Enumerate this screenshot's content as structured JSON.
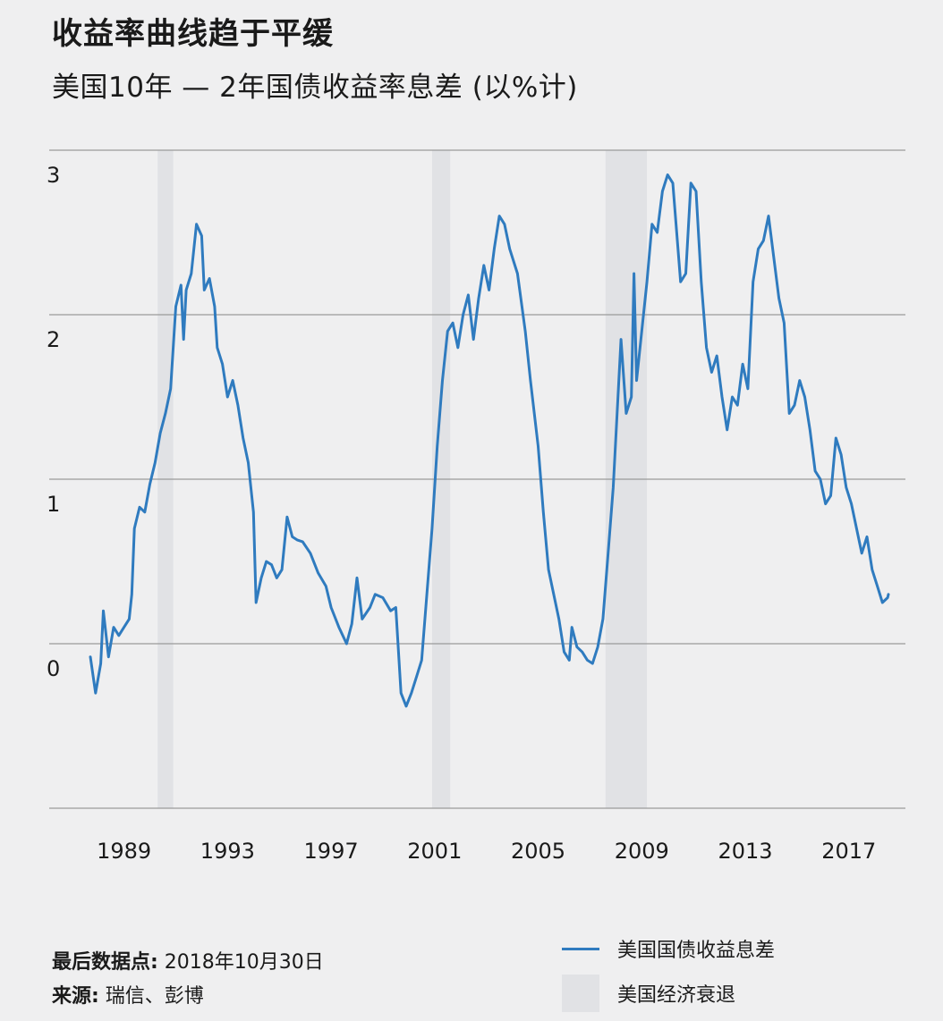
{
  "header": {
    "title": "收益率曲线趋于平缓",
    "subtitle": "美国10年 — 2年国债收益率息差 (以%计)"
  },
  "chart_data": {
    "type": "line",
    "title": "收益率曲线趋于平缓",
    "subtitle": "美国10年 — 2年国债收益率息差 (以%计)",
    "xlabel": "",
    "ylabel": "",
    "xlim": [
      1987.7,
      2019.6
    ],
    "ylim": [
      -1,
      3.1
    ],
    "y_ticks": [
      0,
      1,
      2,
      3
    ],
    "y_tick_labels": [
      "0",
      "1",
      "2",
      "3"
    ],
    "x_ticks": [
      1989,
      1993,
      1997,
      2001,
      2005,
      2009,
      2013,
      2017
    ],
    "x_tick_labels": [
      "1989",
      "1993",
      "1997",
      "2001",
      "2005",
      "2009",
      "2013",
      "2017"
    ],
    "grid": true,
    "recessions": [
      {
        "start": 1990.6,
        "end": 1991.2
      },
      {
        "start": 2001.2,
        "end": 2001.9
      },
      {
        "start": 2007.9,
        "end": 2009.5
      }
    ],
    "series": [
      {
        "name": "美国国债收益息差",
        "color": "#2f7bbf",
        "points": [
          [
            1988.0,
            -0.08
          ],
          [
            1988.2,
            -0.3
          ],
          [
            1988.4,
            -0.12
          ],
          [
            1988.5,
            0.2
          ],
          [
            1988.7,
            -0.08
          ],
          [
            1988.9,
            0.1
          ],
          [
            1989.1,
            0.05
          ],
          [
            1989.3,
            0.1
          ],
          [
            1989.5,
            0.15
          ],
          [
            1989.6,
            0.3
          ],
          [
            1989.7,
            0.7
          ],
          [
            1989.9,
            0.83
          ],
          [
            1990.1,
            0.8
          ],
          [
            1990.3,
            0.97
          ],
          [
            1990.5,
            1.1
          ],
          [
            1990.7,
            1.28
          ],
          [
            1990.9,
            1.4
          ],
          [
            1991.1,
            1.55
          ],
          [
            1991.3,
            2.05
          ],
          [
            1991.5,
            2.18
          ],
          [
            1991.6,
            1.85
          ],
          [
            1991.7,
            2.15
          ],
          [
            1991.9,
            2.25
          ],
          [
            1992.0,
            2.4
          ],
          [
            1992.1,
            2.55
          ],
          [
            1992.3,
            2.48
          ],
          [
            1992.4,
            2.15
          ],
          [
            1992.6,
            2.22
          ],
          [
            1992.8,
            2.05
          ],
          [
            1992.9,
            1.8
          ],
          [
            1993.1,
            1.7
          ],
          [
            1993.3,
            1.5
          ],
          [
            1993.5,
            1.6
          ],
          [
            1993.7,
            1.45
          ],
          [
            1993.9,
            1.25
          ],
          [
            1994.1,
            1.1
          ],
          [
            1994.3,
            0.8
          ],
          [
            1994.4,
            0.25
          ],
          [
            1994.6,
            0.4
          ],
          [
            1994.8,
            0.5
          ],
          [
            1995.0,
            0.48
          ],
          [
            1995.2,
            0.4
          ],
          [
            1995.4,
            0.45
          ],
          [
            1995.6,
            0.77
          ],
          [
            1995.8,
            0.65
          ],
          [
            1996.0,
            0.63
          ],
          [
            1996.2,
            0.62
          ],
          [
            1996.5,
            0.55
          ],
          [
            1996.8,
            0.43
          ],
          [
            1997.1,
            0.35
          ],
          [
            1997.3,
            0.22
          ],
          [
            1997.6,
            0.1
          ],
          [
            1997.9,
            0.0
          ],
          [
            1998.1,
            0.12
          ],
          [
            1998.3,
            0.4
          ],
          [
            1998.5,
            0.15
          ],
          [
            1998.8,
            0.22
          ],
          [
            1999.0,
            0.3
          ],
          [
            1999.3,
            0.28
          ],
          [
            1999.6,
            0.2
          ],
          [
            1999.8,
            0.22
          ],
          [
            2000.0,
            -0.3
          ],
          [
            2000.2,
            -0.38
          ],
          [
            2000.4,
            -0.3
          ],
          [
            2000.6,
            -0.2
          ],
          [
            2000.8,
            -0.1
          ],
          [
            2001.0,
            0.3
          ],
          [
            2001.2,
            0.7
          ],
          [
            2001.4,
            1.2
          ],
          [
            2001.6,
            1.6
          ],
          [
            2001.8,
            1.9
          ],
          [
            2002.0,
            1.95
          ],
          [
            2002.2,
            1.8
          ],
          [
            2002.4,
            2.0
          ],
          [
            2002.6,
            2.12
          ],
          [
            2002.8,
            1.85
          ],
          [
            2003.0,
            2.1
          ],
          [
            2003.2,
            2.3
          ],
          [
            2003.4,
            2.15
          ],
          [
            2003.6,
            2.4
          ],
          [
            2003.8,
            2.6
          ],
          [
            2004.0,
            2.55
          ],
          [
            2004.2,
            2.4
          ],
          [
            2004.5,
            2.25
          ],
          [
            2004.8,
            1.9
          ],
          [
            2005.0,
            1.6
          ],
          [
            2005.3,
            1.2
          ],
          [
            2005.5,
            0.8
          ],
          [
            2005.7,
            0.45
          ],
          [
            2005.9,
            0.3
          ],
          [
            2006.1,
            0.15
          ],
          [
            2006.3,
            -0.05
          ],
          [
            2006.5,
            -0.1
          ],
          [
            2006.6,
            0.1
          ],
          [
            2006.8,
            -0.02
          ],
          [
            2007.0,
            -0.05
          ],
          [
            2007.2,
            -0.1
          ],
          [
            2007.4,
            -0.12
          ],
          [
            2007.6,
            -0.02
          ],
          [
            2007.8,
            0.15
          ],
          [
            2008.0,
            0.55
          ],
          [
            2008.2,
            0.95
          ],
          [
            2008.4,
            1.55
          ],
          [
            2008.5,
            1.85
          ],
          [
            2008.7,
            1.4
          ],
          [
            2008.9,
            1.5
          ],
          [
            2009.0,
            2.25
          ],
          [
            2009.1,
            1.6
          ],
          [
            2009.3,
            1.9
          ],
          [
            2009.5,
            2.2
          ],
          [
            2009.7,
            2.55
          ],
          [
            2009.9,
            2.5
          ],
          [
            2010.1,
            2.75
          ],
          [
            2010.3,
            2.85
          ],
          [
            2010.5,
            2.8
          ],
          [
            2010.7,
            2.4
          ],
          [
            2010.8,
            2.2
          ],
          [
            2011.0,
            2.25
          ],
          [
            2011.2,
            2.8
          ],
          [
            2011.4,
            2.75
          ],
          [
            2011.6,
            2.2
          ],
          [
            2011.8,
            1.8
          ],
          [
            2012.0,
            1.65
          ],
          [
            2012.2,
            1.75
          ],
          [
            2012.4,
            1.5
          ],
          [
            2012.6,
            1.3
          ],
          [
            2012.8,
            1.5
          ],
          [
            2013.0,
            1.45
          ],
          [
            2013.2,
            1.7
          ],
          [
            2013.4,
            1.55
          ],
          [
            2013.6,
            2.2
          ],
          [
            2013.8,
            2.4
          ],
          [
            2014.0,
            2.45
          ],
          [
            2014.2,
            2.6
          ],
          [
            2014.4,
            2.35
          ],
          [
            2014.6,
            2.1
          ],
          [
            2014.8,
            1.95
          ],
          [
            2015.0,
            1.4
          ],
          [
            2015.2,
            1.45
          ],
          [
            2015.4,
            1.6
          ],
          [
            2015.6,
            1.5
          ],
          [
            2015.8,
            1.3
          ],
          [
            2016.0,
            1.05
          ],
          [
            2016.2,
            1.0
          ],
          [
            2016.4,
            0.85
          ],
          [
            2016.6,
            0.9
          ],
          [
            2016.8,
            1.25
          ],
          [
            2017.0,
            1.15
          ],
          [
            2017.2,
            0.95
          ],
          [
            2017.4,
            0.85
          ],
          [
            2017.6,
            0.7
          ],
          [
            2017.8,
            0.55
          ],
          [
            2018.0,
            0.65
          ],
          [
            2018.2,
            0.45
          ],
          [
            2018.4,
            0.35
          ],
          [
            2018.6,
            0.25
          ],
          [
            2018.8,
            0.28
          ],
          [
            2018.83,
            0.3
          ]
        ]
      }
    ],
    "legend": [
      {
        "label": "美国国债收益息差",
        "kind": "line"
      },
      {
        "label": "美国经济衰退",
        "kind": "area"
      }
    ],
    "legend_position": "bottom-right"
  },
  "footer": {
    "last_point_label": "最后数据点:",
    "last_point_value": " 2018年10月30日",
    "source_label": "来源:",
    "source_value": " 瑞信、彭博"
  },
  "legend": {
    "line_label": "美国国债收益息差",
    "recession_label": "美国经济衰退"
  },
  "colors": {
    "line": "#2f7bbf",
    "recession": "#e1e2e5",
    "grid": "#9a9a9a",
    "background": "#efeff0"
  }
}
